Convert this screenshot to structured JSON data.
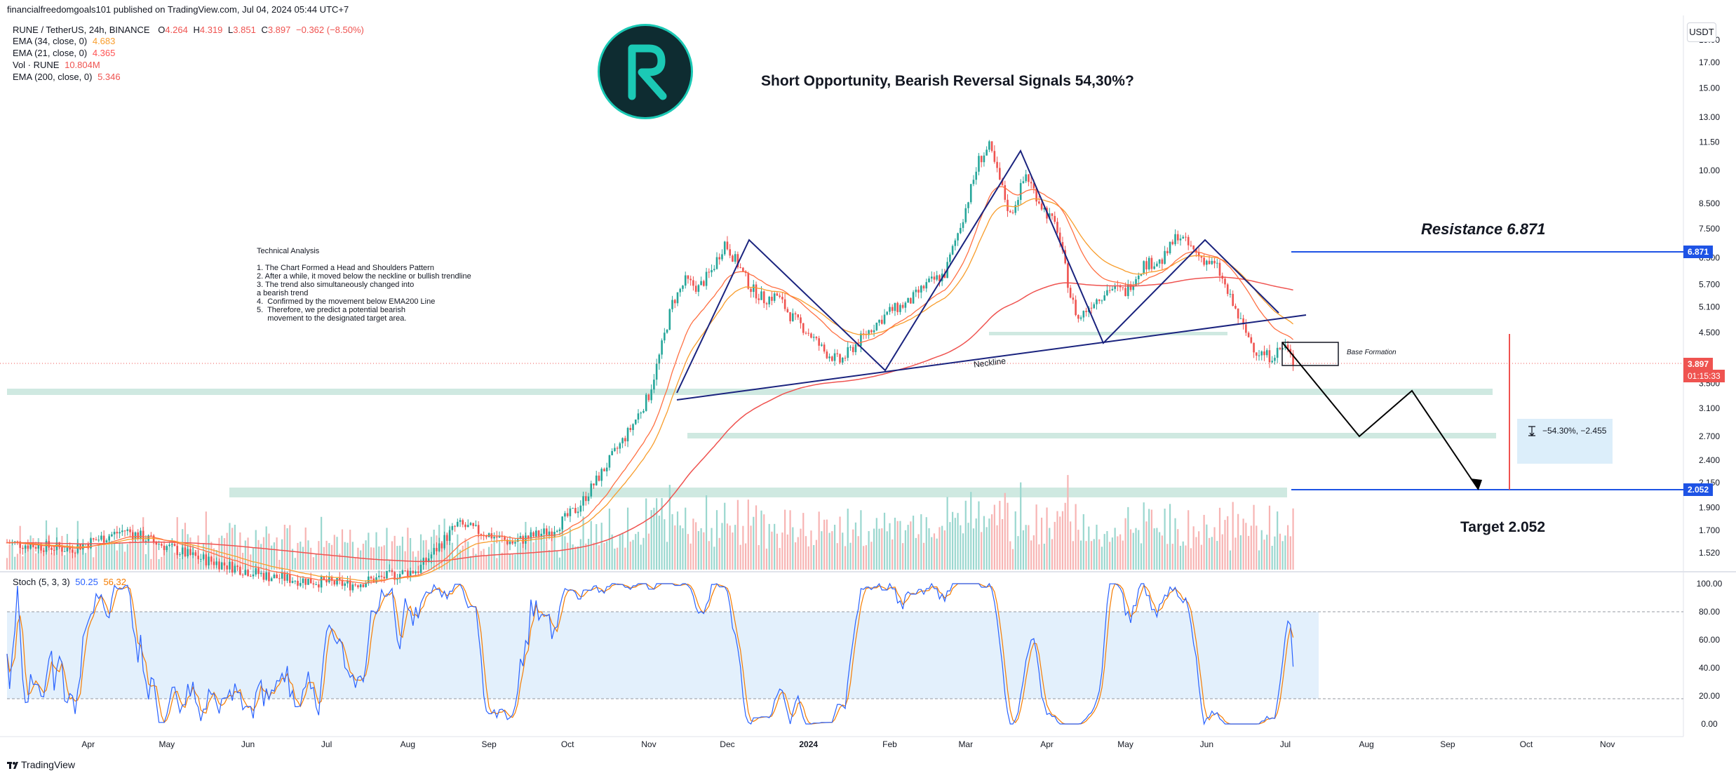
{
  "header": {
    "published": "financialfreedomgoals101 published on TradingView.com, Jul 04, 2024 05:44 UTC+7",
    "symbol": "RUNE / TetherUS, 24h, BINANCE",
    "ohlc": {
      "o_label": "O",
      "o": "4.264",
      "h_label": "H",
      "h": "4.319",
      "l_label": "L",
      "l": "3.851",
      "c_label": "C",
      "c": "3.897",
      "chg": "−0.362 (−8.50%)"
    },
    "indicators": [
      {
        "label": "EMA (34, close, 0)",
        "value": "4.683",
        "color": "#f89d2c"
      },
      {
        "label": "EMA (21, close, 0)",
        "value": "4.365",
        "color": "#ff5252"
      },
      {
        "label": "Vol · RUNE",
        "value": "10.804M",
        "color": "#ef5350"
      },
      {
        "label": "EMA (200, close, 0)",
        "value": "5.346",
        "color": "#ef5350"
      }
    ],
    "unit": "USDT"
  },
  "annotations": {
    "title": "Short Opportunity, Bearish Reversal Signals 54,30%?",
    "technical_analysis": "Technical Analysis\n\n1. The Chart Formed a Head and Shoulders Pattern\n2. After a while, it moved below the neckline or bullish trendline\n3. The trend also simultaneously changed into\na bearish trend\n4.  Confirmed by the movement below EMA200 Line\n5.  Therefore, we predict a potential bearish\n     movement to the designated target area.",
    "resistance": "Resistance 6.871",
    "target": "Target  2.052",
    "base_formation": "Base Formation",
    "neckline": "Neckline",
    "measure": "−54.30%, −2.455"
  },
  "price_tags": {
    "resistance": "6.871",
    "current": "3.897",
    "countdown": "01:15:33",
    "target": "2.052"
  },
  "stoch": {
    "label": "Stoch (5, 3, 3)",
    "k": "50.25",
    "d": "56.32",
    "ticks": [
      "100.00",
      "80.00",
      "60.00",
      "40.00",
      "20.00",
      "0.00"
    ]
  },
  "footer": {
    "brand": "TradingView"
  },
  "colors": {
    "candle_up": "#26a69a",
    "candle_down": "#ef5350",
    "ema200": "#ef5350",
    "ema34": "#f89d2c",
    "ema21": "#ff7043",
    "pattern_line": "#1a237e",
    "support_zone": "#cfe9e1",
    "level_line": "#1e53e5",
    "stoch_k": "#2962ff",
    "stoch_d": "#f57c00",
    "stoch_band": "#e3f0fc"
  },
  "chart_data": {
    "type": "line",
    "scale": "log",
    "price_axis_ticks": [
      19.0,
      17.0,
      15.0,
      13.0,
      11.5,
      10.0,
      8.5,
      7.5,
      6.5,
      5.7,
      5.1,
      4.5,
      3.5,
      3.1,
      2.7,
      2.4,
      2.15,
      1.9,
      1.7,
      1.52
    ],
    "time_axis_labels": [
      "Apr",
      "May",
      "Jun",
      "Jul",
      "Aug",
      "Sep",
      "Oct",
      "Nov",
      "Dec",
      "2024",
      "Feb",
      "Mar",
      "Apr",
      "May",
      "Jun",
      "Jul",
      "Aug",
      "Sep",
      "Oct",
      "Nov"
    ],
    "ylim": [
      1.4,
      21.0
    ],
    "x": [
      "2023-03-01",
      "2023-03-25",
      "2023-04-15",
      "2023-05-10",
      "2023-06-10",
      "2023-07-10",
      "2023-08-05",
      "2023-08-20",
      "2023-09-10",
      "2023-09-25",
      "2023-10-05",
      "2023-10-15",
      "2023-10-25",
      "2023-11-01",
      "2023-11-05",
      "2023-11-10",
      "2023-11-15",
      "2023-11-20",
      "2023-11-25",
      "2023-11-30",
      "2023-12-05",
      "2023-12-10",
      "2023-12-15",
      "2023-12-20",
      "2023-12-25",
      "2024-01-01",
      "2024-01-07",
      "2024-01-13",
      "2024-01-20",
      "2024-01-25",
      "2024-02-01",
      "2024-02-08",
      "2024-02-15",
      "2024-02-22",
      "2024-03-01",
      "2024-03-06",
      "2024-03-10",
      "2024-03-14",
      "2024-03-18",
      "2024-03-24",
      "2024-03-30",
      "2024-04-05",
      "2024-04-10",
      "2024-04-13",
      "2024-04-18",
      "2024-04-25",
      "2024-05-01",
      "2024-05-08",
      "2024-05-15",
      "2024-05-21",
      "2024-05-25",
      "2024-05-30",
      "2024-06-05",
      "2024-06-10",
      "2024-06-15",
      "2024-06-20",
      "2024-06-25",
      "2024-07-01",
      "2024-07-04"
    ],
    "series": [
      {
        "name": "RUNE / TetherUS",
        "values": [
          1.6,
          1.55,
          1.7,
          1.5,
          1.35,
          1.3,
          1.4,
          1.75,
          1.6,
          1.7,
          1.9,
          2.3,
          2.8,
          3.3,
          4.0,
          5.2,
          5.8,
          5.6,
          6.1,
          7.0,
          6.3,
          5.6,
          5.3,
          5.4,
          4.9,
          4.5,
          4.1,
          3.9,
          4.3,
          4.6,
          5.0,
          5.2,
          5.7,
          6.0,
          8.3,
          10.5,
          11.2,
          9.5,
          8.0,
          9.8,
          8.4,
          7.5,
          5.4,
          4.8,
          5.2,
          5.6,
          5.5,
          6.3,
          6.4,
          7.3,
          6.9,
          6.5,
          6.2,
          5.3,
          4.6,
          4.1,
          4.0,
          4.2,
          3.9
        ]
      }
    ],
    "levels": {
      "resistance": 6.871,
      "current": 3.897,
      "target": 2.052
    },
    "projection": [
      {
        "date": "2024-06-23",
        "price": 4.0
      },
      {
        "date": "2024-07-25",
        "price": 2.65
      },
      {
        "date": "2024-08-12",
        "price": 3.45
      },
      {
        "date": "2024-09-05",
        "price": 2.052
      }
    ],
    "measure": {
      "percent": -54.3,
      "change": -2.455
    }
  }
}
